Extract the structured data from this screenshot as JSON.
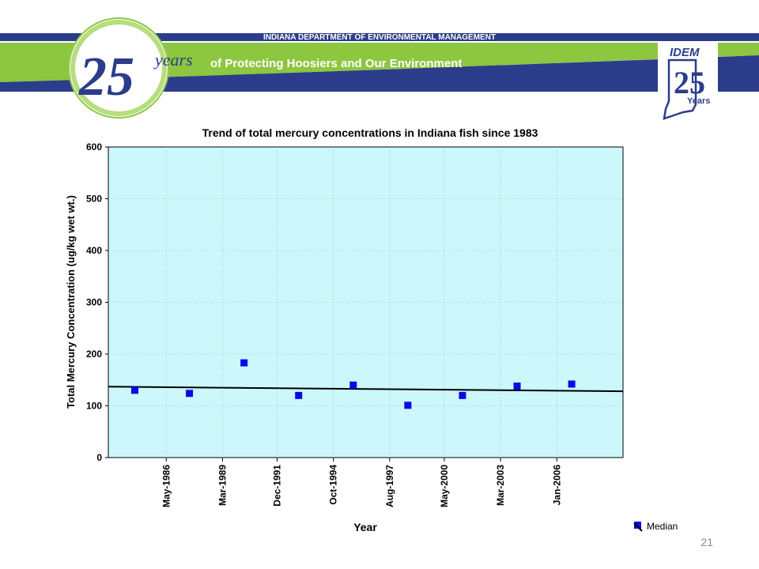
{
  "header": {
    "agency": "INDIANA DEPARTMENT OF ENVIRONMENTAL MANAGEMENT",
    "anniversary_number": "25",
    "anniversary_word": "years",
    "tagline": "of Protecting Hoosiers and Our Environment",
    "logo_acronym": "IDEM",
    "logo_number": "25",
    "logo_word": "Years",
    "colors": {
      "navy": "#2b3d8a",
      "green": "#8dc63f",
      "light_green": "#b7dd7e"
    }
  },
  "chart_data": {
    "type": "scatter",
    "title": "Trend of total mercury concentrations in Indiana fish since 1983",
    "xlabel": "Year",
    "ylabel": "Total Mercury Concentration (ug/kg wet wt.)",
    "ylim": [
      0,
      600
    ],
    "yticks": [
      0,
      100,
      200,
      300,
      400,
      500,
      600
    ],
    "xlim": [
      "1983-06",
      "2009-05"
    ],
    "xticks": [
      "May-1986",
      "Mar-1989",
      "Dec-1991",
      "Oct-1994",
      "Aug-1997",
      "May-2000",
      "Mar-2003",
      "Jan-2006"
    ],
    "grid": true,
    "plot_background": "#ccf7fb",
    "series": [
      {
        "name": "Median",
        "color": "#0a0ae6",
        "x": [
          "1984-10",
          "1987-07",
          "1990-04",
          "1993-01",
          "1995-10",
          "1998-07",
          "2001-04",
          "2004-01",
          "2006-10"
        ],
        "y": [
          130,
          124,
          183,
          120,
          140,
          101,
          120,
          138,
          142
        ]
      }
    ],
    "trendline": {
      "x": [
        "1983-06",
        "2009-05"
      ],
      "y": [
        137,
        128
      ],
      "color": "#000000"
    },
    "legend": {
      "placement": "bottom-right",
      "entries": [
        "Median"
      ]
    }
  },
  "slide_number": "21"
}
